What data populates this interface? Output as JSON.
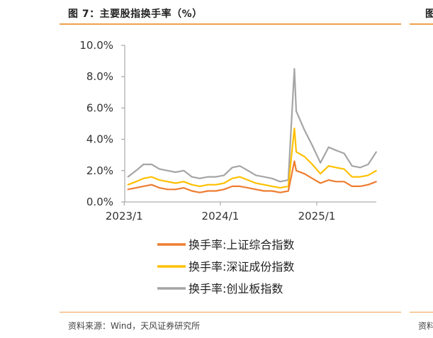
{
  "header": {
    "title": "图 7：主要股指换手率（%）",
    "right_title_fragment": "图"
  },
  "footer": {
    "source": "资料来源：Wind，天风证券研究所",
    "source_right_fragment": "资料"
  },
  "colors": {
    "accent": "#f0a04b",
    "sh": "#ed7d31",
    "sz": "#ffc000",
    "cy": "#a5a5a5"
  },
  "chart_data": {
    "type": "line",
    "title": "",
    "xlabel": "",
    "ylabel": "",
    "ylim": [
      0,
      10
    ],
    "y_ticks": [
      0,
      2,
      4,
      6,
      8,
      10
    ],
    "y_tick_labels": [
      "0.0%",
      "2.0%",
      "4.0%",
      "6.0%",
      "8.0%",
      "10.0%"
    ],
    "x_range": [
      "2023-01-03",
      "2025-08-15"
    ],
    "x_ticks": [
      "2023-01-01",
      "2024-01-01",
      "2025-01-01"
    ],
    "x_tick_labels": [
      "2023/1",
      "2024/1",
      "2025/1"
    ],
    "legend_position": "bottom-center",
    "grid": false,
    "x": [
      "2023-01",
      "2023-02",
      "2023-03",
      "2023-04",
      "2023-05",
      "2023-06",
      "2023-07",
      "2023-08",
      "2023-09",
      "2023-10",
      "2023-11",
      "2023-12",
      "2024-01",
      "2024-02",
      "2024-03",
      "2024-04",
      "2024-05",
      "2024-06",
      "2024-07",
      "2024-08",
      "2024-09",
      "2024-10-08",
      "2024-10",
      "2024-11",
      "2024-12",
      "2025-01",
      "2025-02",
      "2025-03",
      "2025-04",
      "2025-05",
      "2025-06",
      "2025-07",
      "2025-08"
    ],
    "series": [
      {
        "name": "换手率:上证综合指数",
        "values": [
          0.8,
          0.9,
          1.0,
          1.1,
          0.9,
          0.8,
          0.8,
          0.9,
          0.7,
          0.6,
          0.7,
          0.7,
          0.8,
          1.0,
          1.0,
          0.9,
          0.8,
          0.7,
          0.7,
          0.6,
          0.7,
          2.6,
          2.0,
          1.8,
          1.5,
          1.2,
          1.4,
          1.3,
          1.3,
          1.0,
          1.0,
          1.1,
          1.3
        ]
      },
      {
        "name": "换手率:深证成份指数",
        "values": [
          1.1,
          1.3,
          1.5,
          1.6,
          1.4,
          1.3,
          1.2,
          1.3,
          1.1,
          1.0,
          1.1,
          1.1,
          1.2,
          1.5,
          1.6,
          1.4,
          1.2,
          1.1,
          1.0,
          0.9,
          1.0,
          4.7,
          3.2,
          2.9,
          2.4,
          1.8,
          2.3,
          2.2,
          2.1,
          1.6,
          1.6,
          1.7,
          2.0
        ]
      },
      {
        "name": "换手率:创业板指数",
        "values": [
          1.6,
          2.0,
          2.4,
          2.4,
          2.1,
          2.0,
          1.9,
          2.0,
          1.6,
          1.5,
          1.6,
          1.6,
          1.7,
          2.2,
          2.3,
          2.0,
          1.7,
          1.6,
          1.5,
          1.3,
          1.4,
          8.5,
          5.8,
          4.6,
          3.6,
          2.5,
          3.5,
          3.3,
          3.1,
          2.3,
          2.2,
          2.4,
          3.2
        ]
      }
    ]
  }
}
